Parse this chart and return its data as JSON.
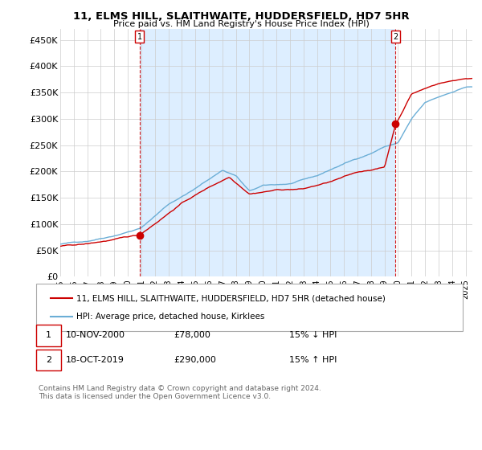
{
  "title": "11, ELMS HILL, SLAITHWAITE, HUDDERSFIELD, HD7 5HR",
  "subtitle": "Price paid vs. HM Land Registry's House Price Index (HPI)",
  "ylim": [
    0,
    470000
  ],
  "yticks": [
    0,
    50000,
    100000,
    150000,
    200000,
    250000,
    300000,
    350000,
    400000,
    450000
  ],
  "ytick_labels": [
    "£0",
    "£50K",
    "£100K",
    "£150K",
    "£200K",
    "£250K",
    "£300K",
    "£350K",
    "£400K",
    "£450K"
  ],
  "sale1_date": 2000.87,
  "sale1_price": 78000,
  "sale1_label": "1",
  "sale2_date": 2019.8,
  "sale2_price": 290000,
  "sale2_label": "2",
  "hpi_color": "#6baed6",
  "sale_color": "#cc0000",
  "vline_color": "#cc0000",
  "shade_color": "#ddeeff",
  "legend_house_label": "11, ELMS HILL, SLAITHWAITE, HUDDERSFIELD, HD7 5HR (detached house)",
  "legend_hpi_label": "HPI: Average price, detached house, Kirklees",
  "annotation1_label": "1",
  "annotation1_date": "10-NOV-2000",
  "annotation1_price": "£78,000",
  "annotation1_pct": "15% ↓ HPI",
  "annotation2_label": "2",
  "annotation2_date": "18-OCT-2019",
  "annotation2_price": "£290,000",
  "annotation2_pct": "15% ↑ HPI",
  "footer": "Contains HM Land Registry data © Crown copyright and database right 2024.\nThis data is licensed under the Open Government Licence v3.0.",
  "background_color": "#ffffff",
  "grid_color": "#cccccc",
  "xlim_start": 1995.0,
  "xlim_end": 2025.5
}
